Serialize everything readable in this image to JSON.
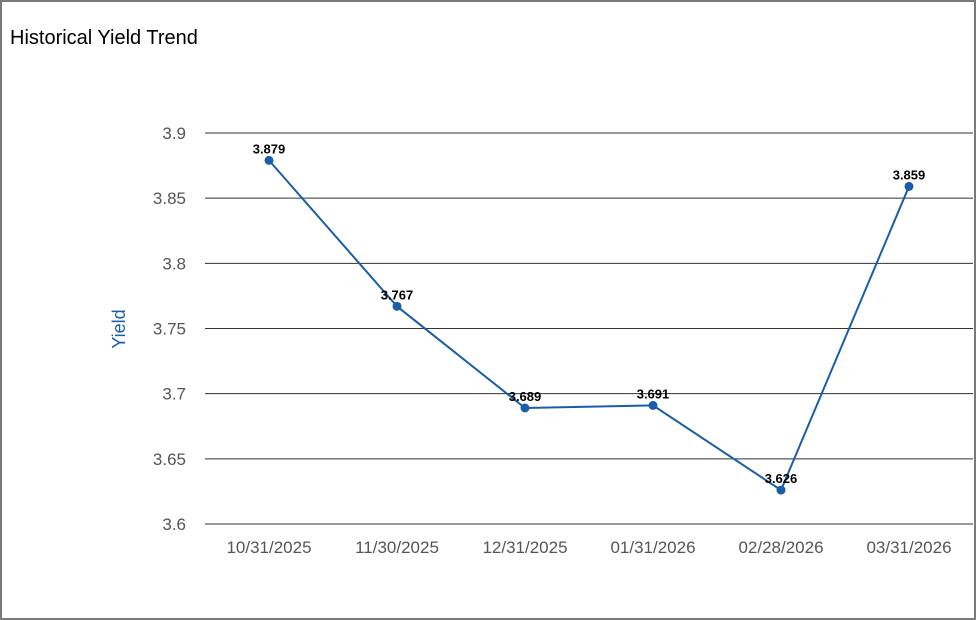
{
  "chart_data": {
    "type": "line",
    "title": "Historical Yield Trend",
    "xlabel": "",
    "ylabel": "Yield",
    "categories": [
      "10/31/2025",
      "11/30/2025",
      "12/31/2025",
      "01/31/2026",
      "02/28/2026",
      "03/31/2026"
    ],
    "values": [
      3.879,
      3.767,
      3.689,
      3.691,
      3.626,
      3.859
    ],
    "data_labels": [
      "3.879",
      "3.767",
      "3.689",
      "3.691",
      "3.626",
      "3.859"
    ],
    "ylim": [
      3.6,
      3.9
    ],
    "yticks": [
      "3.6",
      "3.65",
      "3.7",
      "3.75",
      "3.8",
      "3.85",
      "3.9"
    ],
    "grid": true,
    "colors": {
      "line": "#1a5ea8",
      "axis_label": "#1a5ea8",
      "gridline": "#333333"
    }
  }
}
